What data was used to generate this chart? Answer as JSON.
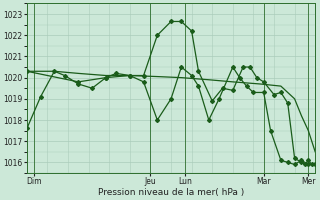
{
  "title": "",
  "xlabel": "Pression niveau de la mer( hPa )",
  "ylabel": "",
  "bg_color": "#cce8d8",
  "grid_color": "#aaccbb",
  "line_color": "#1a5c1a",
  "ylim": [
    1015.5,
    1023.5
  ],
  "yticks": [
    1016,
    1017,
    1018,
    1019,
    1020,
    1021,
    1022,
    1023
  ],
  "xlim": [
    0,
    168
  ],
  "day_labels": [
    "Dim",
    "Jeu",
    "Lun",
    "Mar",
    "Mer"
  ],
  "day_positions": [
    4,
    72,
    92,
    138,
    164
  ],
  "vline_positions": [
    4,
    72,
    92,
    138,
    164
  ],
  "series": [
    [
      0,
      1017.6,
      8,
      1019.1,
      16,
      1020.3,
      22,
      1020.1,
      30,
      1019.7,
      38,
      1019.5,
      46,
      1020.0,
      52,
      1020.2,
      60,
      1020.1,
      68,
      1020.1,
      76,
      1022.0,
      84,
      1022.65,
      90,
      1022.65,
      96,
      1022.2,
      100,
      1020.3,
      108,
      1018.9,
      114,
      1019.5,
      120,
      1019.4,
      126,
      1020.5,
      130,
      1020.5,
      134,
      1020.0,
      138,
      1019.8,
      144,
      1019.2,
      148,
      1019.3,
      152,
      1018.8,
      156,
      1016.2,
      160,
      1016.0,
      162,
      1015.9,
      164,
      1016.1,
      166,
      1015.9
    ],
    [
      0,
      1020.3,
      16,
      1020.3,
      30,
      1020.2,
      46,
      1020.1,
      60,
      1020.1,
      76,
      1020.05,
      90,
      1020.0,
      106,
      1019.9,
      120,
      1019.8,
      136,
      1019.7,
      148,
      1019.6,
      156,
      1019.0,
      160,
      1018.2,
      164,
      1017.5,
      168,
      1016.5
    ],
    [
      0,
      1020.3,
      30,
      1019.8,
      46,
      1020.0,
      60,
      1020.1,
      68,
      1019.8,
      76,
      1018.0,
      84,
      1019.0,
      90,
      1020.5,
      96,
      1020.1,
      100,
      1019.6,
      106,
      1018.0,
      112,
      1019.0,
      120,
      1020.5,
      124,
      1020.0,
      128,
      1019.6,
      132,
      1019.3,
      138,
      1019.3,
      142,
      1017.5,
      148,
      1016.1,
      152,
      1016.0,
      156,
      1015.9,
      160,
      1016.1,
      164,
      1015.9,
      168,
      1015.9
    ]
  ]
}
